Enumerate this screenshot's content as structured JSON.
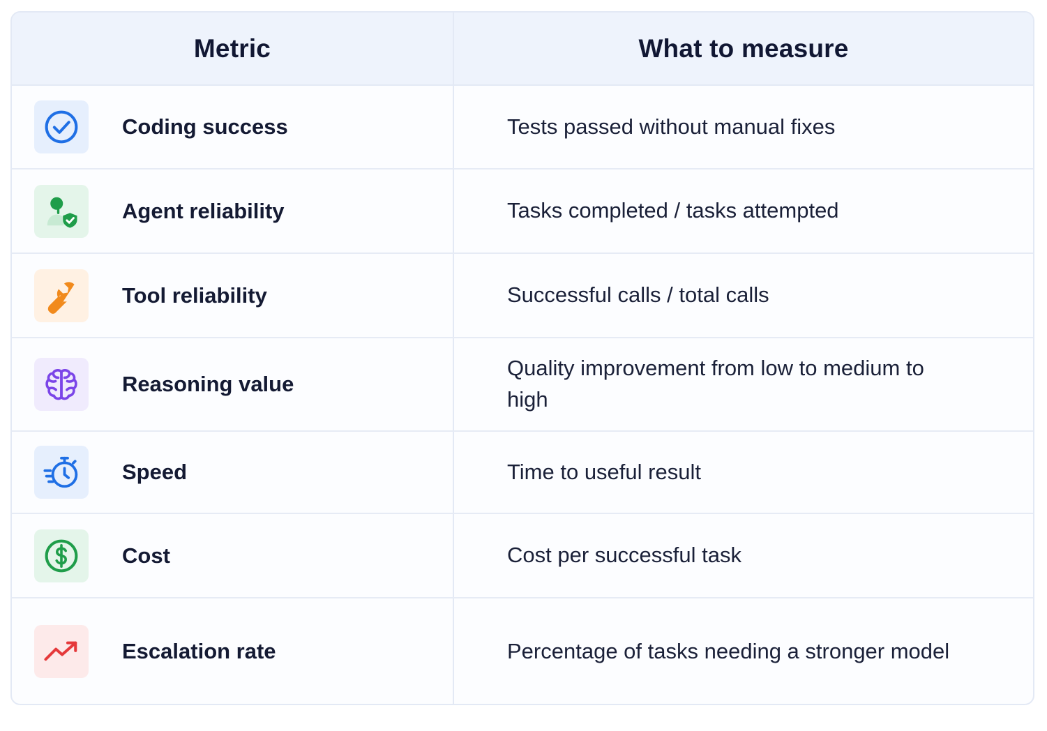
{
  "table": {
    "headers": {
      "metric": "Metric",
      "measure": "What to measure"
    },
    "rows": [
      {
        "icon": "check-circle-icon",
        "tile_color": "#e6effd",
        "icon_color": "#1f6fe5",
        "metric": "Coding success",
        "measure": "Tests passed without manual fixes"
      },
      {
        "icon": "person-shield-icon",
        "tile_color": "#e4f5ea",
        "icon_color": "#1f9d4a",
        "metric": "Agent reliability",
        "measure": "Tasks completed / tasks attempted"
      },
      {
        "icon": "wrench-icon",
        "tile_color": "#fff1e3",
        "icon_color": "#f18a1c",
        "metric": "Tool reliability",
        "measure": "Successful calls / total calls"
      },
      {
        "icon": "brain-icon",
        "tile_color": "#f0ebfd",
        "icon_color": "#7b45e8",
        "metric": "Reasoning value",
        "measure": "Quality improvement from low to medium to high"
      },
      {
        "icon": "stopwatch-icon",
        "tile_color": "#e6effd",
        "icon_color": "#1f6fe5",
        "metric": "Speed",
        "measure": "Time to useful result"
      },
      {
        "icon": "dollar-circle-icon",
        "tile_color": "#e4f5ea",
        "icon_color": "#1f9d4a",
        "metric": "Cost",
        "measure": "Cost per successful task"
      },
      {
        "icon": "trend-up-icon",
        "tile_color": "#fdeaea",
        "icon_color": "#e5393b",
        "metric": "Escalation rate",
        "measure": "Percentage of tasks needing a stronger model"
      }
    ]
  }
}
